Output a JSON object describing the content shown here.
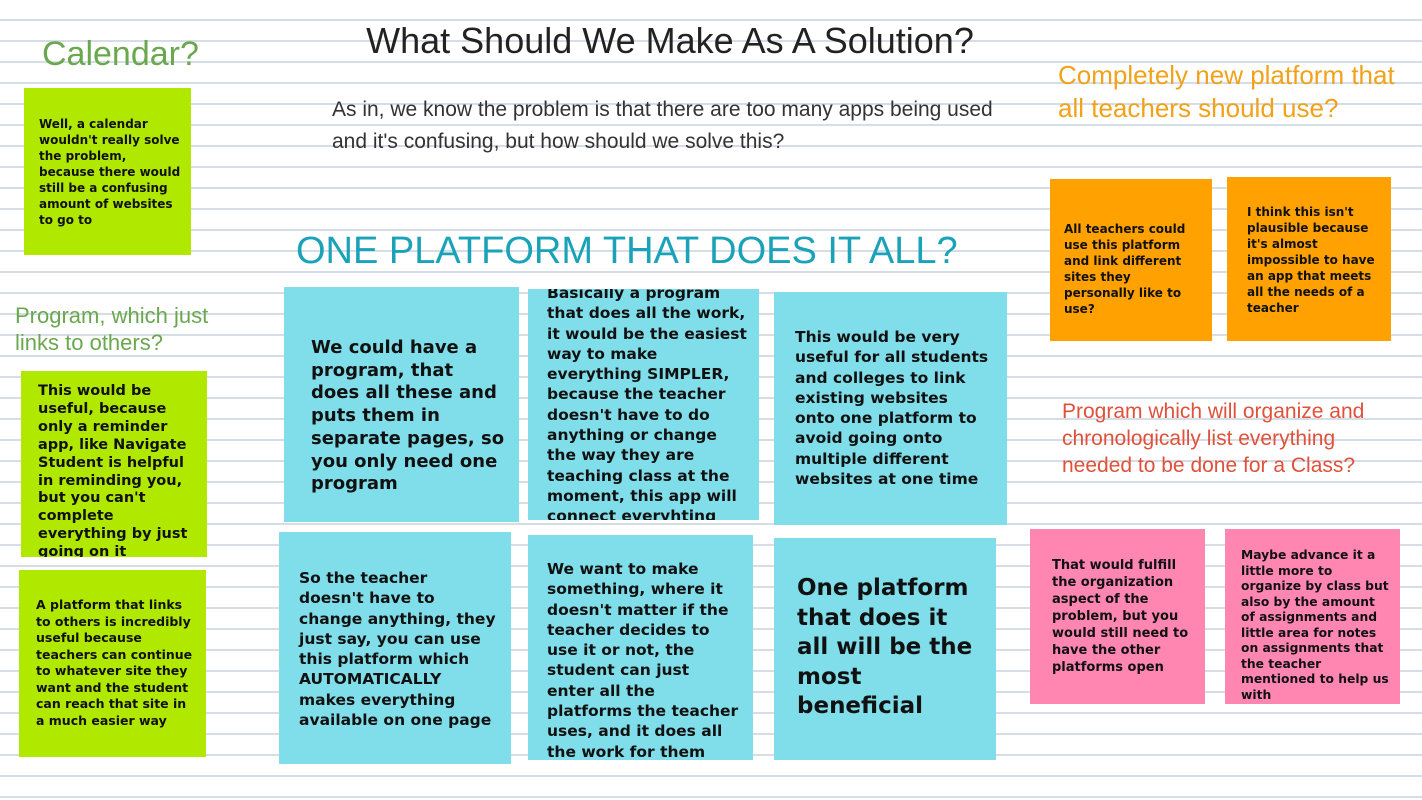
{
  "title": "What Should We Make As A Solution?",
  "subtitle": "As in, we know the problem is that there are too many apps being used and it's confusing, but how should we solve this?",
  "center_heading": "ONE PLATFORM THAT DOES IT ALL?",
  "sections": {
    "calendar": {
      "heading": "Calendar?",
      "notes": [
        "Well, a calendar wouldn't really solve the problem, because there would still be a confusing amount of websites to go to"
      ]
    },
    "program_links": {
      "heading": "Program, which just links to others?",
      "notes": [
        "This would be useful, because only a reminder app, like Navigate Student is helpful in reminding you, but you can't complete everything by just going on it",
        "A platform that links to others is incredibly useful because teachers can continue to whatever site they want and the student can reach that site in a much easier way"
      ]
    },
    "one_platform": {
      "notes": [
        "We could have a program, that does all these and puts them in separate pages, so you only need one program",
        "Basically a program that does all the work, it would be the easiest way to make everything SIMPLER, because the teacher doesn't have to do anything or change the way they are teaching class at the moment, this app will connect everyhting",
        "This would be very useful for all students and colleges to link existing websites onto one platform to avoid going onto multiple different websites at one time",
        "So the teacher doesn't have to change anything, they just say, you can use this platform which AUTOMATICALLY makes everything available on one page",
        "We want to make something, where it doesn't matter if the teacher decides to use it or not, the student can just enter all the platforms the teacher uses, and it does all the work for them",
        "One platform that does it all will be the most beneficial"
      ]
    },
    "new_platform": {
      "heading": "Completely new platform that all teachers should use?",
      "notes": [
        "All teachers could use this platform and link different sites they personally like to use?",
        "I think this isn't plausible because it's almost impossible to have an app that meets all the needs of a teacher"
      ]
    },
    "organize": {
      "heading": "Program which will organize and chronologically list everything needed to be done for a Class?",
      "notes": [
        "That would fulfill the organization aspect of the problem, but you would still need to have the other platforms open",
        "Maybe advance it a little more to organize by class but also by the amount of assignments and little area for notes on assignments that the teacher mentioned to help us with"
      ]
    }
  },
  "colors": {
    "green_note": "#b0e800",
    "blue_note": "#80deea",
    "orange_note": "#ffa100",
    "pink_note": "#ff86b0",
    "heading_teal": "#1aa3b8",
    "heading_green": "#6aa84f",
    "heading_orange": "#f1a21a",
    "heading_red": "#e0503a"
  }
}
